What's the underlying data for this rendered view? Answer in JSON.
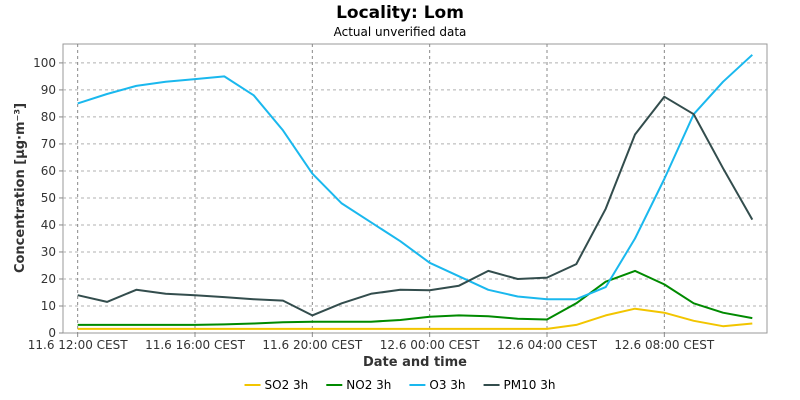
{
  "chart_data": {
    "type": "line",
    "title": "Locality: Lom",
    "subtitle": "Actual unverified data",
    "xlabel": "Date and time",
    "ylabel": "Concentration [µg·m⁻³]",
    "ylim": [
      0,
      107
    ],
    "xlim": [
      -0.5,
      23.5
    ],
    "yticks": [
      0,
      10,
      20,
      30,
      40,
      50,
      60,
      70,
      80,
      90,
      100
    ],
    "xticks": [
      {
        "x": 0,
        "label": "11.6 12:00 CEST"
      },
      {
        "x": 4,
        "label": "11.6 16:00 CEST"
      },
      {
        "x": 8,
        "label": "11.6 20:00 CEST"
      },
      {
        "x": 12,
        "label": "12.6 00:00 CEST"
      },
      {
        "x": 16,
        "label": "12.6 04:00 CEST"
      },
      {
        "x": 20,
        "label": "12.6 08:00 CEST"
      }
    ],
    "grid": true,
    "legend": "bottom",
    "x": [
      0,
      1,
      2,
      3,
      4,
      5,
      6,
      7,
      8,
      9,
      10,
      11,
      12,
      13,
      14,
      15,
      16,
      17,
      18,
      19,
      20,
      21,
      22,
      23
    ],
    "series": [
      {
        "name": "SO2 3h",
        "color": "#f2c500",
        "values": [
          1.5,
          1.5,
          1.5,
          1.5,
          1.5,
          1.5,
          1.5,
          1.5,
          1.5,
          1.5,
          1.5,
          1.5,
          1.5,
          1.5,
          1.5,
          1.5,
          1.5,
          3,
          6.5,
          9,
          7.5,
          4.5,
          2.5,
          3.5
        ]
      },
      {
        "name": "NO2 3h",
        "color": "#008a00",
        "values": [
          3,
          3,
          3,
          3,
          3,
          3.2,
          3.5,
          4,
          4.2,
          4.2,
          4.2,
          4.8,
          6,
          6.5,
          6.2,
          5.3,
          5,
          11,
          19,
          23,
          18,
          11,
          7.5,
          5.5
        ]
      },
      {
        "name": "O3 3h",
        "color": "#1ab8ee",
        "values": [
          85,
          88.5,
          91.5,
          93,
          94,
          95,
          88,
          75,
          59,
          48,
          41,
          34,
          26,
          21,
          16,
          13.5,
          12.5,
          12.5,
          17,
          35,
          57,
          81,
          93,
          103
        ]
      },
      {
        "name": "PM10 3h",
        "color": "#334d4d",
        "values": [
          14,
          11.5,
          16,
          14.5,
          14,
          13.3,
          12.5,
          12,
          6.5,
          11,
          14.5,
          16,
          15.8,
          17.5,
          23,
          20,
          20.5,
          25.5,
          46,
          73.5,
          87.5,
          81,
          61,
          42
        ]
      }
    ]
  }
}
